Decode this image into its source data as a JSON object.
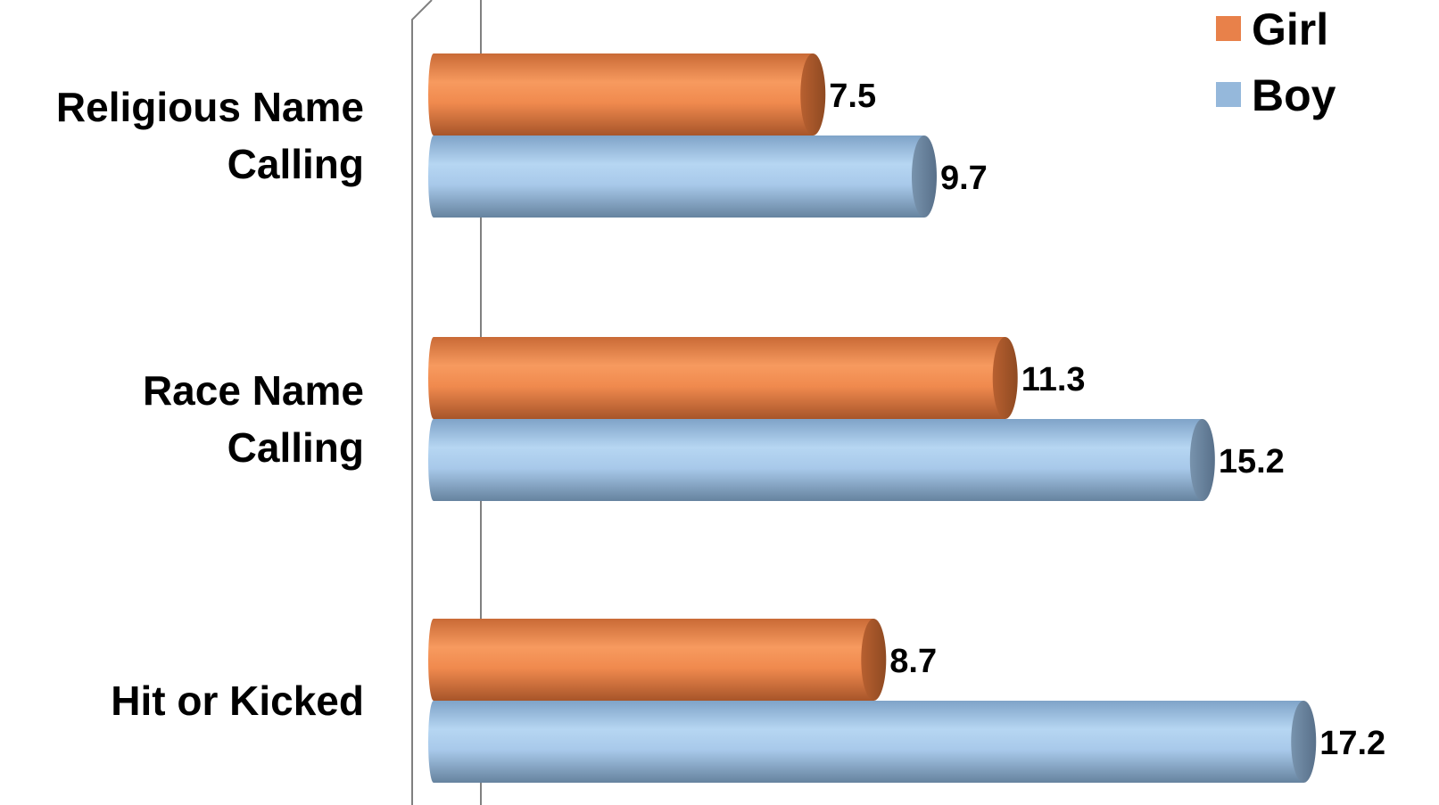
{
  "chart_data": {
    "type": "bar",
    "orientation": "horizontal",
    "categories": [
      [
        "Religious Name",
        "Calling"
      ],
      [
        "Race Name",
        "Calling"
      ],
      [
        "Hit or Kicked"
      ]
    ],
    "series": [
      {
        "name": "Girl",
        "color": "#e8814a",
        "values": [
          7.5,
          11.3,
          8.7
        ]
      },
      {
        "name": "Boy",
        "color": "#95b8db",
        "values": [
          9.7,
          15.2,
          17.2
        ]
      }
    ],
    "xlim": [
      0,
      17.2
    ],
    "legend_position": "top-right",
    "grid": false
  }
}
